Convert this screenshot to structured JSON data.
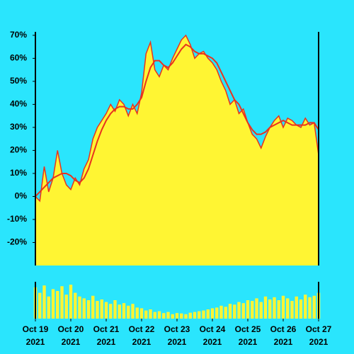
{
  "chart_data": {
    "type": "area",
    "background": "#2ae5fd",
    "fill_color": "#fff533",
    "x": [
      0,
      0.125,
      0.25,
      0.375,
      0.5,
      0.625,
      0.75,
      0.875,
      1,
      1.125,
      1.25,
      1.375,
      1.5,
      1.625,
      1.75,
      1.875,
      2,
      2.125,
      2.25,
      2.375,
      2.5,
      2.625,
      2.75,
      2.875,
      3,
      3.125,
      3.25,
      3.375,
      3.5,
      3.625,
      3.75,
      3.875,
      4,
      4.125,
      4.25,
      4.375,
      4.5,
      4.625,
      4.75,
      4.875,
      5,
      5.125,
      5.25,
      5.375,
      5.5,
      5.625,
      5.75,
      5.875,
      6,
      6.125,
      6.25,
      6.375,
      6.5,
      6.625,
      6.75,
      6.875,
      7,
      7.125,
      7.25,
      7.375,
      7.5,
      7.625,
      7.75,
      7.875,
      8
    ],
    "series": [
      {
        "color": "#e8331f",
        "values": [
          0,
          -2,
          13,
          2,
          8,
          20,
          10,
          5,
          3,
          8,
          5,
          12,
          16,
          25,
          30,
          33,
          36,
          40,
          37,
          42,
          40,
          35,
          40,
          36,
          45,
          62,
          67,
          55,
          52,
          57,
          55,
          60,
          64,
          68,
          70,
          66,
          60,
          62,
          63,
          60,
          58,
          55,
          50,
          46,
          40,
          42,
          36,
          38,
          32,
          27,
          25,
          21,
          26,
          30,
          33,
          35,
          30,
          34,
          33,
          31,
          30,
          34,
          31,
          32,
          18
        ]
      },
      {
        "color": "#e8331f",
        "values": [
          0,
          2,
          4,
          6,
          8,
          9,
          10,
          10,
          9,
          7,
          6,
          8,
          12,
          18,
          24,
          29,
          33,
          36,
          38,
          39,
          39,
          38,
          38,
          40,
          43,
          50,
          56,
          59,
          59,
          57,
          56,
          58,
          61,
          64,
          66,
          65,
          63,
          62,
          62,
          61,
          60,
          58,
          54,
          50,
          46,
          42,
          40,
          36,
          32,
          29,
          27,
          27,
          28,
          30,
          31,
          32,
          33,
          32,
          31,
          31,
          31,
          31,
          32,
          32,
          29
        ]
      }
    ],
    "volume": [
      85,
      70,
      90,
      60,
      80,
      75,
      88,
      65,
      92,
      70,
      60,
      55,
      50,
      62,
      48,
      52,
      45,
      40,
      50,
      38,
      42,
      35,
      40,
      30,
      28,
      22,
      25,
      18,
      20,
      15,
      18,
      12,
      15,
      14,
      12,
      16,
      18,
      20,
      22,
      25,
      28,
      30,
      35,
      32,
      40,
      38,
      45,
      42,
      50,
      48,
      55,
      45,
      60,
      52,
      58,
      50,
      62,
      55,
      48,
      60,
      52,
      65,
      58,
      62,
      70
    ],
    "volume_ylim": [
      0,
      100
    ],
    "xlim": [
      0,
      8
    ],
    "xticks": [
      {
        "value": 0,
        "label": [
          "Oct 19",
          "2021"
        ]
      },
      {
        "value": 1,
        "label": [
          "Oct 20",
          "2021"
        ]
      },
      {
        "value": 2,
        "label": [
          "Oct 21",
          "2021"
        ]
      },
      {
        "value": 3,
        "label": [
          "Oct 22",
          "2021"
        ]
      },
      {
        "value": 4,
        "label": [
          "Oct 23",
          "2021"
        ]
      },
      {
        "value": 5,
        "label": [
          "Oct 24",
          "2021"
        ]
      },
      {
        "value": 6,
        "label": [
          "Oct 25",
          "2021"
        ]
      },
      {
        "value": 7,
        "label": [
          "Oct 26",
          "2021"
        ]
      },
      {
        "value": 8,
        "label": [
          "Oct 27",
          "2021"
        ]
      }
    ],
    "ylim": [
      -30,
      71.5
    ],
    "yticks": [
      {
        "value": -20,
        "label": "-20%"
      },
      {
        "value": -10,
        "label": "-10%"
      },
      {
        "value": 0,
        "label": "0%"
      },
      {
        "value": 10,
        "label": "10%"
      },
      {
        "value": 20,
        "label": "20%"
      },
      {
        "value": 30,
        "label": "30%"
      },
      {
        "value": 40,
        "label": "40%"
      },
      {
        "value": 50,
        "label": "50%"
      },
      {
        "value": 60,
        "label": "60%"
      },
      {
        "value": 70,
        "label": "70%"
      }
    ]
  }
}
